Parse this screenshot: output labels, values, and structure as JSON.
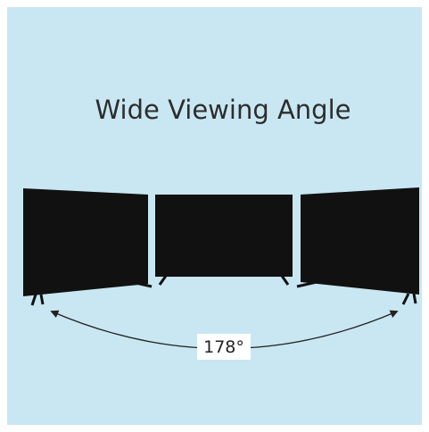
{
  "title": "Wide Viewing Angle",
  "angle_label": "178°"
}
